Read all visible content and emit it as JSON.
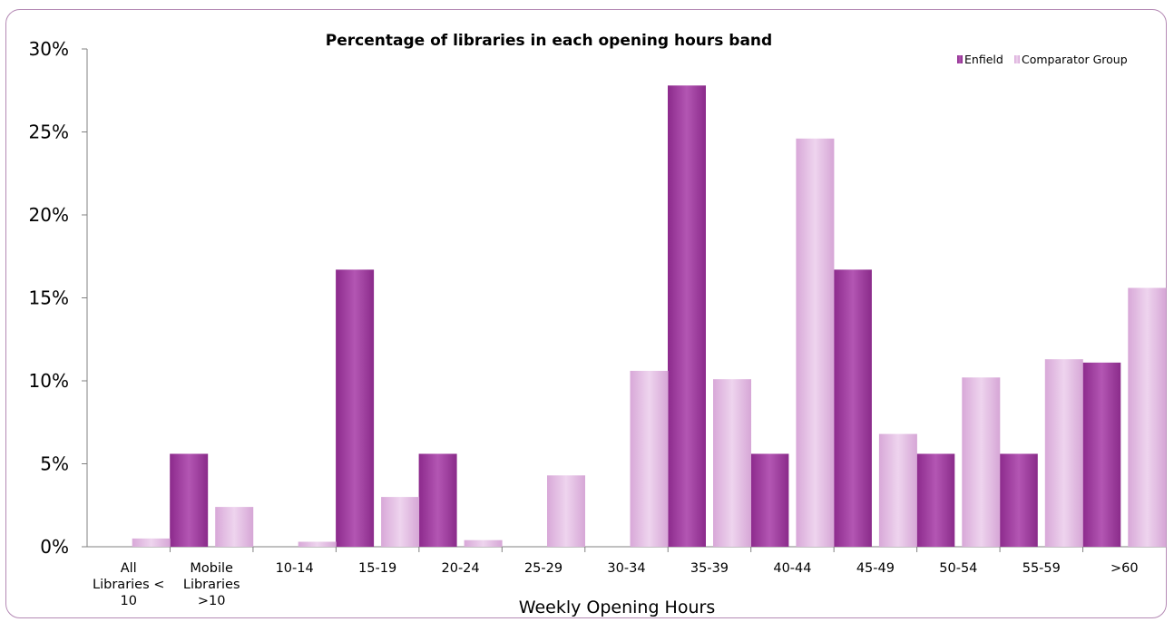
{
  "chart_data": {
    "type": "bar",
    "title": "Percentage of libraries in each opening hours band",
    "xlabel": "Weekly Opening Hours",
    "ylabel": "",
    "ylim": [
      0,
      30
    ],
    "yticks": [
      "0%",
      "5%",
      "10%",
      "15%",
      "20%",
      "25%",
      "30%"
    ],
    "categories": [
      [
        "All",
        "Libraries <",
        "10"
      ],
      [
        "Mobile",
        "Libraries",
        ">10"
      ],
      [
        "10-14"
      ],
      [
        "15-19"
      ],
      [
        "20-24"
      ],
      [
        "25-29"
      ],
      [
        "30-34"
      ],
      [
        "35-39"
      ],
      [
        "40-44"
      ],
      [
        "45-49"
      ],
      [
        "50-54"
      ],
      [
        "55-59"
      ],
      [
        ">60"
      ]
    ],
    "series": [
      {
        "name": "Enfield",
        "color": "#a843a8",
        "values": [
          0,
          5.6,
          0,
          16.7,
          5.6,
          0,
          0,
          27.8,
          5.6,
          16.7,
          5.6,
          5.6,
          11.1
        ]
      },
      {
        "name": "Comparator Group",
        "color": "#e3bfe3",
        "values": [
          0.5,
          2.4,
          0.3,
          3.0,
          0.4,
          4.3,
          10.6,
          10.1,
          24.6,
          6.8,
          10.2,
          11.3,
          15.6
        ]
      }
    ],
    "grid": false,
    "legend_position": "top-right"
  }
}
